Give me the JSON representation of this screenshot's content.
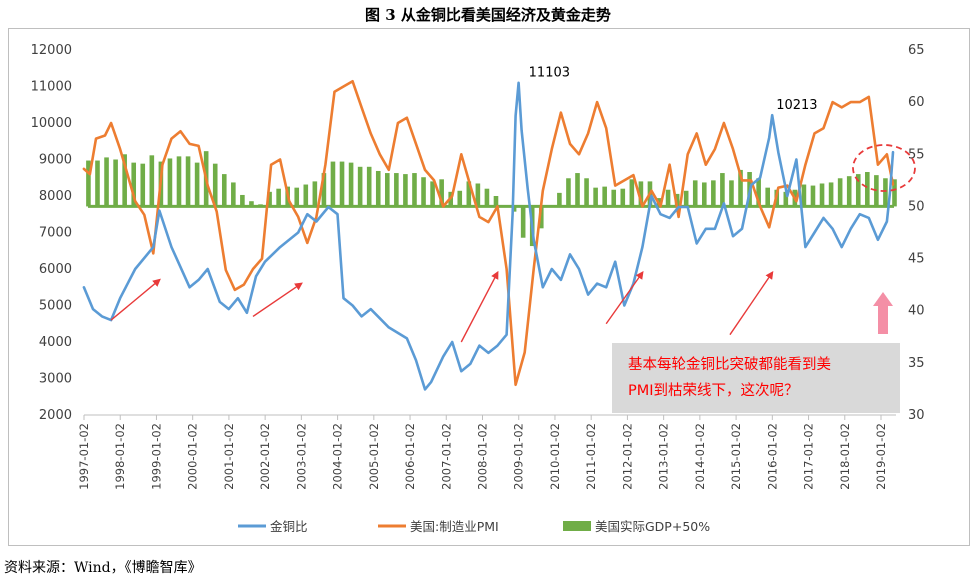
{
  "figure": {
    "title": "图 3 从金铜比看美国经济及黄金走势",
    "source": "资料来源：Wind，《博瞻智库》"
  },
  "chart_data": {
    "type": "line",
    "title": "图 3 从金铜比看美国经济及黄金走势",
    "x_range": [
      "1997-01-02",
      "2019-06-01"
    ],
    "x_tick_labels": [
      "1997-01-02",
      "1998-01-02",
      "1999-01-02",
      "2000-01-02",
      "2001-01-02",
      "2002-01-02",
      "2003-01-02",
      "2004-01-02",
      "2005-01-02",
      "2006-01-02",
      "2007-01-02",
      "2008-01-02",
      "2009-01-02",
      "2010-01-02",
      "2011-01-02",
      "2012-01-02",
      "2013-01-02",
      "2014-01-02",
      "2015-01-02",
      "2016-01-02",
      "2017-01-02",
      "2018-01-02",
      "2019-01-02"
    ],
    "y_left": {
      "min": 2000,
      "max": 12000,
      "step": 1000,
      "ticks": [
        "2000",
        "3000",
        "4000",
        "5000",
        "6000",
        "7000",
        "8000",
        "9000",
        "10000",
        "11000",
        "12000"
      ]
    },
    "y_right": {
      "min": 30,
      "max": 65,
      "step": 5,
      "ticks": [
        "30",
        "35",
        "40",
        "45",
        "50",
        "55",
        "60",
        "65"
      ]
    },
    "legend": {
      "placement": "bottom",
      "items": [
        {
          "label": "金铜比",
          "color": "#5b9bd5"
        },
        {
          "label": "美国:制造业PMI",
          "color": "#ed7d31"
        },
        {
          "label": "美国实际GDP+50%",
          "color": "#70ad47"
        }
      ]
    },
    "series": [
      {
        "name": "金铜比",
        "axis": "left",
        "color": "#5b9bd5",
        "x": [
          "1997-01",
          "1997-04",
          "1997-07",
          "1997-10",
          "1998-01",
          "1998-06",
          "1998-12",
          "1999-02",
          "1999-06",
          "1999-12",
          "2000-03",
          "2000-06",
          "2000-10",
          "2001-01",
          "2001-04",
          "2001-07",
          "2001-10",
          "2002-01",
          "2002-06",
          "2002-12",
          "2003-03",
          "2003-06",
          "2003-10",
          "2004-01",
          "2004-03",
          "2004-06",
          "2004-09",
          "2004-12",
          "2005-06",
          "2005-12",
          "2006-03",
          "2006-06",
          "2006-08",
          "2006-12",
          "2007-03",
          "2007-06",
          "2007-09",
          "2007-12",
          "2008-03",
          "2008-06",
          "2008-09",
          "2008-11",
          "2008-12",
          "2009-01",
          "2009-02",
          "2009-04",
          "2009-06",
          "2009-09",
          "2009-12",
          "2010-03",
          "2010-06",
          "2010-09",
          "2010-12",
          "2011-03",
          "2011-06",
          "2011-09",
          "2011-12",
          "2012-03",
          "2012-06",
          "2012-09",
          "2012-12",
          "2013-03",
          "2013-06",
          "2013-09",
          "2013-12",
          "2014-03",
          "2014-06",
          "2014-09",
          "2014-12",
          "2015-03",
          "2015-06",
          "2015-09",
          "2015-12",
          "2016-01",
          "2016-03",
          "2016-06",
          "2016-09",
          "2016-12",
          "2017-03",
          "2017-06",
          "2017-09",
          "2017-12",
          "2018-03",
          "2018-06",
          "2018-09",
          "2018-12",
          "2019-03",
          "2019-04",
          "2019-05"
        ],
        "values": [
          5500,
          4900,
          4700,
          4600,
          5200,
          6000,
          6600,
          7600,
          6600,
          5500,
          5700,
          6000,
          5100,
          4900,
          5200,
          4800,
          5800,
          6200,
          6600,
          7000,
          7500,
          7300,
          7700,
          7500,
          5200,
          5000,
          4700,
          4900,
          4400,
          4100,
          3500,
          2700,
          2900,
          3600,
          4000,
          3200,
          3400,
          3900,
          3700,
          3900,
          4200,
          7500,
          10200,
          11100,
          9800,
          8200,
          6800,
          5500,
          6000,
          5700,
          6400,
          6000,
          5300,
          5600,
          5500,
          6200,
          5000,
          5600,
          6600,
          8000,
          7500,
          7400,
          7700,
          7700,
          6700,
          7100,
          7100,
          7800,
          6900,
          7100,
          8300,
          8500,
          9600,
          10213,
          9200,
          8000,
          9000,
          6600,
          7000,
          7400,
          7100,
          6600,
          7100,
          7500,
          7400,
          6800,
          7300,
          8100,
          9200
        ]
      },
      {
        "name": "美国:制造业PMI",
        "axis": "right",
        "color": "#ed7d31",
        "x": [
          "1997-01",
          "1997-03",
          "1997-05",
          "1997-08",
          "1997-10",
          "1998-01",
          "1998-03",
          "1998-06",
          "1998-09",
          "1998-12",
          "1999-03",
          "1999-06",
          "1999-09",
          "1999-12",
          "2000-03",
          "2000-06",
          "2000-09",
          "2000-12",
          "2001-03",
          "2001-06",
          "2001-09",
          "2001-12",
          "2002-03",
          "2002-06",
          "2002-09",
          "2002-12",
          "2003-03",
          "2003-06",
          "2003-09",
          "2003-12",
          "2004-03",
          "2004-06",
          "2004-09",
          "2004-12",
          "2005-03",
          "2005-06",
          "2005-09",
          "2005-12",
          "2006-03",
          "2006-06",
          "2006-09",
          "2006-12",
          "2007-03",
          "2007-06",
          "2007-09",
          "2007-12",
          "2008-03",
          "2008-06",
          "2008-09",
          "2008-12",
          "2009-03",
          "2009-06",
          "2009-09",
          "2009-12",
          "2010-03",
          "2010-06",
          "2010-09",
          "2010-12",
          "2011-03",
          "2011-06",
          "2011-09",
          "2011-12",
          "2012-03",
          "2012-06",
          "2012-09",
          "2012-12",
          "2013-03",
          "2013-06",
          "2013-09",
          "2013-12",
          "2014-03",
          "2014-06",
          "2014-09",
          "2014-12",
          "2015-03",
          "2015-06",
          "2015-09",
          "2015-12",
          "2016-03",
          "2016-06",
          "2016-09",
          "2016-12",
          "2017-03",
          "2017-06",
          "2017-09",
          "2017-12",
          "2018-03",
          "2018-06",
          "2018-09",
          "2018-12",
          "2019-03",
          "2019-05"
        ],
        "values": [
          53.6,
          53.1,
          56.5,
          56.8,
          58.0,
          55.5,
          53.5,
          50.5,
          49.2,
          45.5,
          54.0,
          56.5,
          57.2,
          56.0,
          55.8,
          52.0,
          49.5,
          43.9,
          42.0,
          42.5,
          44.0,
          45.0,
          54.0,
          54.5,
          50.5,
          49.0,
          46.5,
          49.0,
          54.0,
          61.0,
          61.5,
          62.0,
          59.5,
          57.0,
          55.0,
          53.5,
          58.0,
          58.5,
          56.0,
          53.5,
          52.5,
          50.0,
          51.0,
          55.0,
          52.0,
          49.0,
          48.5,
          50.0,
          44.0,
          32.9,
          36.0,
          44.0,
          51.5,
          55.5,
          59.0,
          56.0,
          55.0,
          57.0,
          60.0,
          57.5,
          52.0,
          52.5,
          53.0,
          50.0,
          51.5,
          50.0,
          54.0,
          49.0,
          55.0,
          57.0,
          54.0,
          55.5,
          58.0,
          55.5,
          52.5,
          52.5,
          50.0,
          48.0,
          51.8,
          52.0,
          50.5,
          54.0,
          57.0,
          57.5,
          60.0,
          59.5,
          60.0,
          60.0,
          60.5,
          54.0,
          55.0,
          52.1
        ]
      },
      {
        "name": "美国实际GDP+50%",
        "axis": "right",
        "type": "bar",
        "color": "#70ad47",
        "x": [
          "1997-Q1",
          "1997-Q2",
          "1997-Q3",
          "1997-Q4",
          "1998-Q1",
          "1998-Q2",
          "1998-Q3",
          "1998-Q4",
          "1999-Q1",
          "1999-Q2",
          "1999-Q3",
          "1999-Q4",
          "2000-Q1",
          "2000-Q2",
          "2000-Q3",
          "2000-Q4",
          "2001-Q1",
          "2001-Q2",
          "2001-Q3",
          "2001-Q4",
          "2002-Q1",
          "2002-Q2",
          "2002-Q3",
          "2002-Q4",
          "2003-Q1",
          "2003-Q2",
          "2003-Q3",
          "2003-Q4",
          "2004-Q1",
          "2004-Q2",
          "2004-Q3",
          "2004-Q4",
          "2005-Q1",
          "2005-Q2",
          "2005-Q3",
          "2005-Q4",
          "2006-Q1",
          "2006-Q2",
          "2006-Q3",
          "2006-Q4",
          "2007-Q1",
          "2007-Q2",
          "2007-Q3",
          "2007-Q4",
          "2008-Q1",
          "2008-Q2",
          "2008-Q3",
          "2008-Q4",
          "2009-Q1",
          "2009-Q2",
          "2009-Q3",
          "2009-Q4",
          "2010-Q1",
          "2010-Q2",
          "2010-Q3",
          "2010-Q4",
          "2011-Q1",
          "2011-Q2",
          "2011-Q3",
          "2011-Q4",
          "2012-Q1",
          "2012-Q2",
          "2012-Q3",
          "2012-Q4",
          "2013-Q1",
          "2013-Q2",
          "2013-Q3",
          "2013-Q4",
          "2014-Q1",
          "2014-Q2",
          "2014-Q3",
          "2014-Q4",
          "2015-Q1",
          "2015-Q2",
          "2015-Q3",
          "2015-Q4",
          "2016-Q1",
          "2016-Q2",
          "2016-Q3",
          "2016-Q4",
          "2017-Q1",
          "2017-Q2",
          "2017-Q3",
          "2017-Q4",
          "2018-Q1",
          "2018-Q2",
          "2018-Q3",
          "2018-Q4",
          "2019-Q1",
          "2019-Q2"
        ],
        "values": [
          54.4,
          54.4,
          54.7,
          54.5,
          55.0,
          54.2,
          54.1,
          54.9,
          54.3,
          54.6,
          54.8,
          54.8,
          54.2,
          55.3,
          54.1,
          53.1,
          52.3,
          51.1,
          50.5,
          50.2,
          51.4,
          51.7,
          51.9,
          51.8,
          52.1,
          52.4,
          53.2,
          54.3,
          54.3,
          54.2,
          53.8,
          53.8,
          53.4,
          53.2,
          53.2,
          53.1,
          53.2,
          52.8,
          52.4,
          52.6,
          51.4,
          51.5,
          52.4,
          52.2,
          51.7,
          51.0,
          50.0,
          49.5,
          47.0,
          46.2,
          47.9,
          50.0,
          51.3,
          52.7,
          53.2,
          52.7,
          51.8,
          51.9,
          51.6,
          51.7,
          52.6,
          52.4,
          52.4,
          50.8,
          51.6,
          51.2,
          51.5,
          52.5,
          52.3,
          52.5,
          53.2,
          52.5,
          53.5,
          53.3,
          52.7,
          51.8,
          51.6,
          51.4,
          51.6,
          52.1,
          52.0,
          52.2,
          52.3,
          52.7,
          52.9,
          53.1,
          53.3,
          53.0,
          52.7,
          52.6
        ]
      }
    ],
    "annotations": [
      {
        "text": "11103",
        "x": "2009-03",
        "y": 11103,
        "axis": "left"
      },
      {
        "text": "10213",
        "x": "2016-01",
        "y": 10213,
        "axis": "left"
      }
    ],
    "arrows": [
      {
        "from": [
          "1997-10",
          4600
        ],
        "to": [
          "1999-02",
          5700
        ]
      },
      {
        "from": [
          "2001-09",
          4700
        ],
        "to": [
          "2003-01",
          5600
        ]
      },
      {
        "from": [
          "2007-06",
          4000
        ],
        "to": [
          "2008-06",
          5900
        ]
      },
      {
        "from": [
          "2011-06",
          4500
        ],
        "to": [
          "2012-06",
          5900
        ]
      },
      {
        "from": [
          "2014-11",
          4200
        ],
        "to": [
          "2016-01",
          5900
        ]
      }
    ],
    "callout": {
      "text_line1": "基本每轮金铜比突破都能看到美",
      "text_line2": "PMI到枯荣线下，这次呢？"
    }
  }
}
